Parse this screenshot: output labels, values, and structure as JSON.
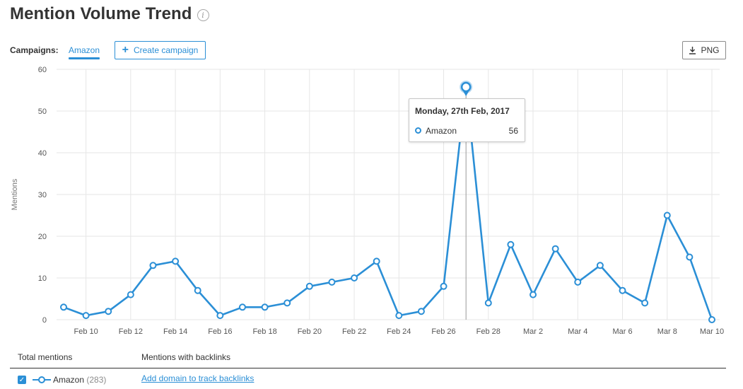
{
  "header": {
    "title": "Mention Volume Trend",
    "info_glyph": "i"
  },
  "campaigns": {
    "label": "Campaigns:",
    "active_tab": "Amazon",
    "create_button_label": "Create campaign",
    "export_button_label": "PNG"
  },
  "tooltip": {
    "date": "Monday, 27th Feb, 2017",
    "series": "Amazon",
    "value": "56"
  },
  "footer": {
    "total_header": "Total mentions",
    "backlinks_header": "Mentions with backlinks",
    "series_name": "Amazon",
    "series_count": "(283)",
    "add_domain_label": "Add domain to track backlinks"
  },
  "colors": {
    "accent": "#2b8fd6",
    "grid": "#e6e6e6"
  },
  "chart_data": {
    "type": "line",
    "ylabel": "Mentions",
    "ylim": [
      0,
      60
    ],
    "yticks": [
      0,
      10,
      20,
      30,
      40,
      50,
      60
    ],
    "xtick_labels": [
      "Feb 10",
      "Feb 12",
      "Feb 14",
      "Feb 16",
      "Feb 18",
      "Feb 20",
      "Feb 22",
      "Feb 24",
      "Feb 26",
      "Feb 28",
      "Mar 2",
      "Mar 4",
      "Mar 6",
      "Mar 8",
      "Mar 10"
    ],
    "grid": true,
    "highlighted_x": "Feb 27",
    "x": [
      "Feb 9",
      "Feb 10",
      "Feb 11",
      "Feb 12",
      "Feb 13",
      "Feb 14",
      "Feb 15",
      "Feb 16",
      "Feb 17",
      "Feb 18",
      "Feb 19",
      "Feb 20",
      "Feb 21",
      "Feb 22",
      "Feb 23",
      "Feb 24",
      "Feb 25",
      "Feb 26",
      "Feb 27",
      "Feb 28",
      "Mar 1",
      "Mar 2",
      "Mar 3",
      "Mar 4",
      "Mar 5",
      "Mar 6",
      "Mar 7",
      "Mar 8",
      "Mar 9",
      "Mar 10"
    ],
    "series": [
      {
        "name": "Amazon",
        "values": [
          3,
          1,
          2,
          6,
          13,
          14,
          7,
          1,
          3,
          3,
          4,
          8,
          9,
          10,
          14,
          1,
          2,
          8,
          56,
          4,
          18,
          6,
          17,
          9,
          13,
          7,
          4,
          25,
          15,
          0
        ]
      }
    ]
  }
}
